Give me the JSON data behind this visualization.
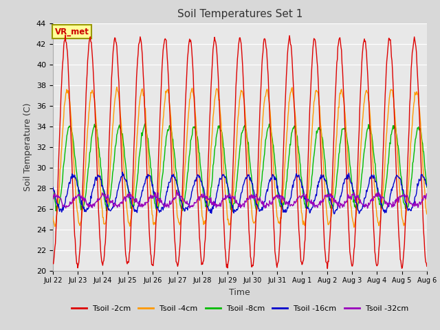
{
  "title": "Soil Temperatures Set 1",
  "xlabel": "Time",
  "ylabel": "Soil Temperature (C)",
  "ylim": [
    20,
    44
  ],
  "yticks": [
    20,
    22,
    24,
    26,
    28,
    30,
    32,
    34,
    36,
    38,
    40,
    42,
    44
  ],
  "fig_bg_color": "#d8d8d8",
  "plot_bg_color": "#e8e8e8",
  "annotation_text": "VR_met",
  "annotation_bg": "#ffff99",
  "annotation_border": "#888800",
  "series_colors": [
    "#dd0000",
    "#ff9900",
    "#00bb00",
    "#0000cc",
    "#9900bb"
  ],
  "series_labels": [
    "Tsoil -2cm",
    "Tsoil -4cm",
    "Tsoil -8cm",
    "Tsoil -16cm",
    "Tsoil -32cm"
  ],
  "x_tick_labels": [
    "Jul 22",
    "Jul 23",
    "Jul 24",
    "Jul 25",
    "Jul 26",
    "Jul 27",
    "Jul 28",
    "Jul 29",
    "Jul 30",
    "Jul 31",
    "Aug 1",
    "Aug 2",
    "Aug 3",
    "Aug 4",
    "Aug 5",
    "Aug 6"
  ],
  "num_days": 15,
  "pts_per_day": 48,
  "title_fontsize": 11,
  "series_amplitudes": [
    11.0,
    6.5,
    4.0,
    1.7,
    0.5
  ],
  "series_bases": [
    31.5,
    31.0,
    30.0,
    27.5,
    26.8
  ],
  "series_phases": [
    0.0,
    0.08,
    0.18,
    0.32,
    0.55
  ]
}
